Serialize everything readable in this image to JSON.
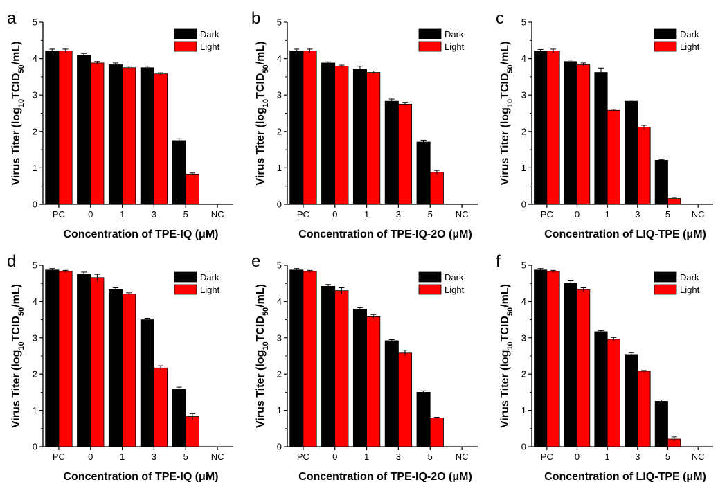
{
  "legend_colors": {
    "Dark": "#000000",
    "Light": "#ff0000"
  },
  "chart_data": [
    {
      "panel": "a",
      "type": "bar",
      "categories": [
        "PC",
        "0",
        "1",
        "3",
        "5",
        "NC"
      ],
      "xlabel": "Concentration of TPE-IQ (μM)",
      "ylabel": "Virus Titer (log10TCID50/mL)",
      "ylim": [
        0,
        5
      ],
      "yticks": [
        "0",
        "1",
        "2",
        "3",
        "4",
        "5"
      ],
      "legend": "top-right",
      "series": [
        {
          "name": "Dark",
          "color": "#000000",
          "values": [
            4.21,
            4.08,
            3.83,
            3.75,
            1.75,
            null
          ],
          "errors": [
            0.05,
            0.06,
            0.05,
            0.04,
            0.05,
            null
          ]
        },
        {
          "name": "Light",
          "color": "#ff0000",
          "values": [
            4.21,
            3.88,
            3.75,
            3.58,
            0.83,
            null
          ],
          "errors": [
            0.05,
            0.04,
            0.04,
            0.03,
            0.03,
            null
          ]
        }
      ]
    },
    {
      "panel": "b",
      "type": "bar",
      "categories": [
        "PC",
        "0",
        "1",
        "3",
        "5",
        "NC"
      ],
      "xlabel": "Concentration of TPE-IQ-2O (μM)",
      "ylabel": "Virus Titer (log10TCID50/mL)",
      "ylim": [
        0,
        5
      ],
      "yticks": [
        "0",
        "1",
        "2",
        "3",
        "4",
        "5"
      ],
      "legend": "top-right",
      "series": [
        {
          "name": "Dark",
          "color": "#000000",
          "values": [
            4.21,
            3.88,
            3.7,
            2.83,
            1.71,
            null
          ],
          "errors": [
            0.05,
            0.03,
            0.09,
            0.06,
            0.05,
            null
          ]
        },
        {
          "name": "Light",
          "color": "#ff0000",
          "values": [
            4.21,
            3.79,
            3.62,
            2.75,
            0.88,
            null
          ],
          "errors": [
            0.05,
            0.03,
            0.04,
            0.04,
            0.05,
            null
          ]
        }
      ]
    },
    {
      "panel": "c",
      "type": "bar",
      "categories": [
        "PC",
        "0",
        "1",
        "3",
        "5",
        "NC"
      ],
      "xlabel": "Concentration of LIQ-TPE (μM)",
      "ylabel": "Virus Titer (log10TCID50/mL)",
      "ylim": [
        0,
        5
      ],
      "yticks": [
        "0",
        "1",
        "2",
        "3",
        "4",
        "5"
      ],
      "legend": "top-right",
      "series": [
        {
          "name": "Dark",
          "color": "#000000",
          "values": [
            4.21,
            3.92,
            3.62,
            2.83,
            1.21,
            null
          ],
          "errors": [
            0.04,
            0.04,
            0.12,
            0.03,
            0.02,
            null
          ]
        },
        {
          "name": "Light",
          "color": "#ff0000",
          "values": [
            4.21,
            3.83,
            2.58,
            2.12,
            0.16,
            null
          ],
          "errors": [
            0.05,
            0.05,
            0.03,
            0.05,
            0.03,
            null
          ]
        }
      ]
    },
    {
      "panel": "d",
      "type": "bar",
      "categories": [
        "PC",
        "0",
        "1",
        "3",
        "5",
        "NC"
      ],
      "xlabel": "Concentration of TPE-IQ (μM)",
      "ylabel": "Virus Titer (log10TCID50/mL)",
      "ylim": [
        0,
        5
      ],
      "yticks": [
        "0",
        "1",
        "2",
        "3",
        "4",
        "5"
      ],
      "legend": "top-right",
      "series": [
        {
          "name": "Dark",
          "color": "#000000",
          "values": [
            4.87,
            4.75,
            4.33,
            3.5,
            1.58,
            null
          ],
          "errors": [
            0.04,
            0.06,
            0.05,
            0.04,
            0.06,
            null
          ]
        },
        {
          "name": "Light",
          "color": "#ff0000",
          "values": [
            4.83,
            4.66,
            4.21,
            2.17,
            0.83,
            null
          ],
          "errors": [
            0.03,
            0.09,
            0.03,
            0.06,
            0.08,
            null
          ]
        }
      ]
    },
    {
      "panel": "e",
      "type": "bar",
      "categories": [
        "PC",
        "0",
        "1",
        "3",
        "5",
        "NC"
      ],
      "xlabel": "Concentration of TPE-IQ-2O (μM)",
      "ylabel": "Virus Titer (log10TCID50/mL)",
      "ylim": [
        0,
        5
      ],
      "yticks": [
        "0",
        "1",
        "2",
        "3",
        "4",
        "5"
      ],
      "legend": "top-right",
      "series": [
        {
          "name": "Dark",
          "color": "#000000",
          "values": [
            4.87,
            4.42,
            3.79,
            2.92,
            1.5,
            null
          ],
          "errors": [
            0.04,
            0.05,
            0.04,
            0.03,
            0.04,
            null
          ]
        },
        {
          "name": "Light",
          "color": "#ff0000",
          "values": [
            4.83,
            4.3,
            3.58,
            2.58,
            0.79,
            null
          ],
          "errors": [
            0.03,
            0.08,
            0.06,
            0.08,
            0.02,
            null
          ]
        }
      ]
    },
    {
      "panel": "f",
      "type": "bar",
      "categories": [
        "PC",
        "0",
        "1",
        "3",
        "5",
        "NC"
      ],
      "xlabel": "Concentration of LIQ-TPE (μM)",
      "ylabel": "Virus Titer (log10TCID50/mL)",
      "ylim": [
        0,
        5
      ],
      "yticks": [
        "0",
        "1",
        "2",
        "3",
        "4",
        "5"
      ],
      "legend": "top-right",
      "series": [
        {
          "name": "Dark",
          "color": "#000000",
          "values": [
            4.87,
            4.5,
            3.17,
            2.54,
            1.25,
            null
          ],
          "errors": [
            0.04,
            0.07,
            0.03,
            0.05,
            0.04,
            null
          ]
        },
        {
          "name": "Light",
          "color": "#ff0000",
          "values": [
            4.83,
            4.33,
            2.96,
            2.08,
            0.21,
            null
          ],
          "errors": [
            0.03,
            0.05,
            0.05,
            0.02,
            0.06,
            null
          ]
        }
      ]
    }
  ]
}
